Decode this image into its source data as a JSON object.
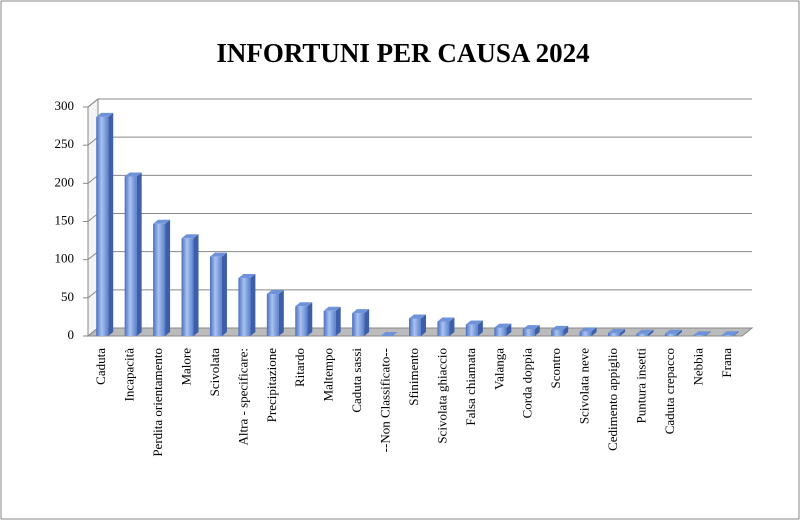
{
  "chart_data": {
    "type": "bar3d",
    "title": "INFORTUNI PER CAUSA 2024",
    "categories": [
      "Caduta",
      "Incapacità",
      "Perdita orientamento",
      "Malore",
      "Scivolata",
      "Altra - specificare:",
      "Precipitazione",
      "Ritardo",
      "Maltempo",
      "Caduta sassi",
      "--Non Classificato--",
      "Sfinimento",
      "Scivolata ghiaccio",
      "Falsa chiamata",
      "Valanga",
      "Corda doppia",
      "Scontro",
      "Scivolata neve",
      "Cedimento appiglio",
      "Puntura insetti",
      "Caduta crepacco",
      "Nebbia",
      "Frana"
    ],
    "values": [
      287,
      209,
      147,
      128,
      104,
      76,
      55,
      39,
      33,
      30,
      0,
      23,
      19,
      15,
      11,
      9,
      8,
      6,
      4,
      3,
      3,
      1,
      1
    ],
    "color": "#6f93d8",
    "ylim": [
      0,
      300
    ],
    "yticks": [
      0,
      50,
      100,
      150,
      200,
      250,
      300
    ],
    "grid": true
  }
}
